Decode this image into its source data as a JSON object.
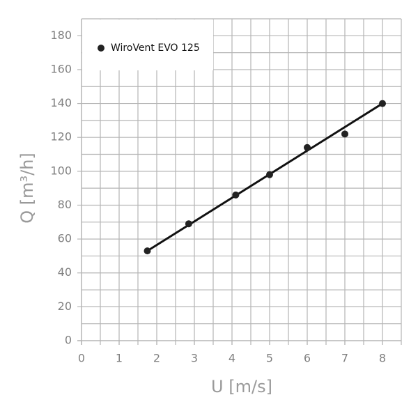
{
  "chart_data": {
    "type": "scatter",
    "xlabel": "U [m/s]",
    "ylabel": "Q [m³/h]",
    "xlim": [
      0,
      8.5
    ],
    "ylim": [
      0,
      190
    ],
    "xticks": [
      0,
      1,
      2,
      3,
      4,
      5,
      6,
      7,
      8
    ],
    "yticks": [
      0,
      20,
      40,
      60,
      80,
      100,
      120,
      140,
      160,
      180
    ],
    "xgrid": [
      0.5,
      1,
      1.5,
      2,
      2.5,
      3,
      3.5,
      4,
      4.5,
      5,
      5.5,
      6,
      6.5,
      7,
      7.5,
      8,
      8.5
    ],
    "ygrid": [
      10,
      20,
      30,
      40,
      50,
      60,
      70,
      80,
      90,
      100,
      110,
      120,
      130,
      140,
      150,
      160,
      170,
      180,
      190
    ],
    "grid_color": "#b5b5b5",
    "legend": "upper left",
    "series": [
      {
        "name": "WiroVent EVO 125",
        "color": "#222222",
        "x": [
          1.75,
          2.85,
          4.1,
          5,
          6,
          7,
          8
        ],
        "values": [
          53,
          69,
          86,
          98,
          114,
          122,
          140
        ]
      }
    ],
    "fit_line": {
      "color": "#111111",
      "x": [
        1.75,
        8
      ],
      "values": [
        53,
        140
      ]
    }
  }
}
